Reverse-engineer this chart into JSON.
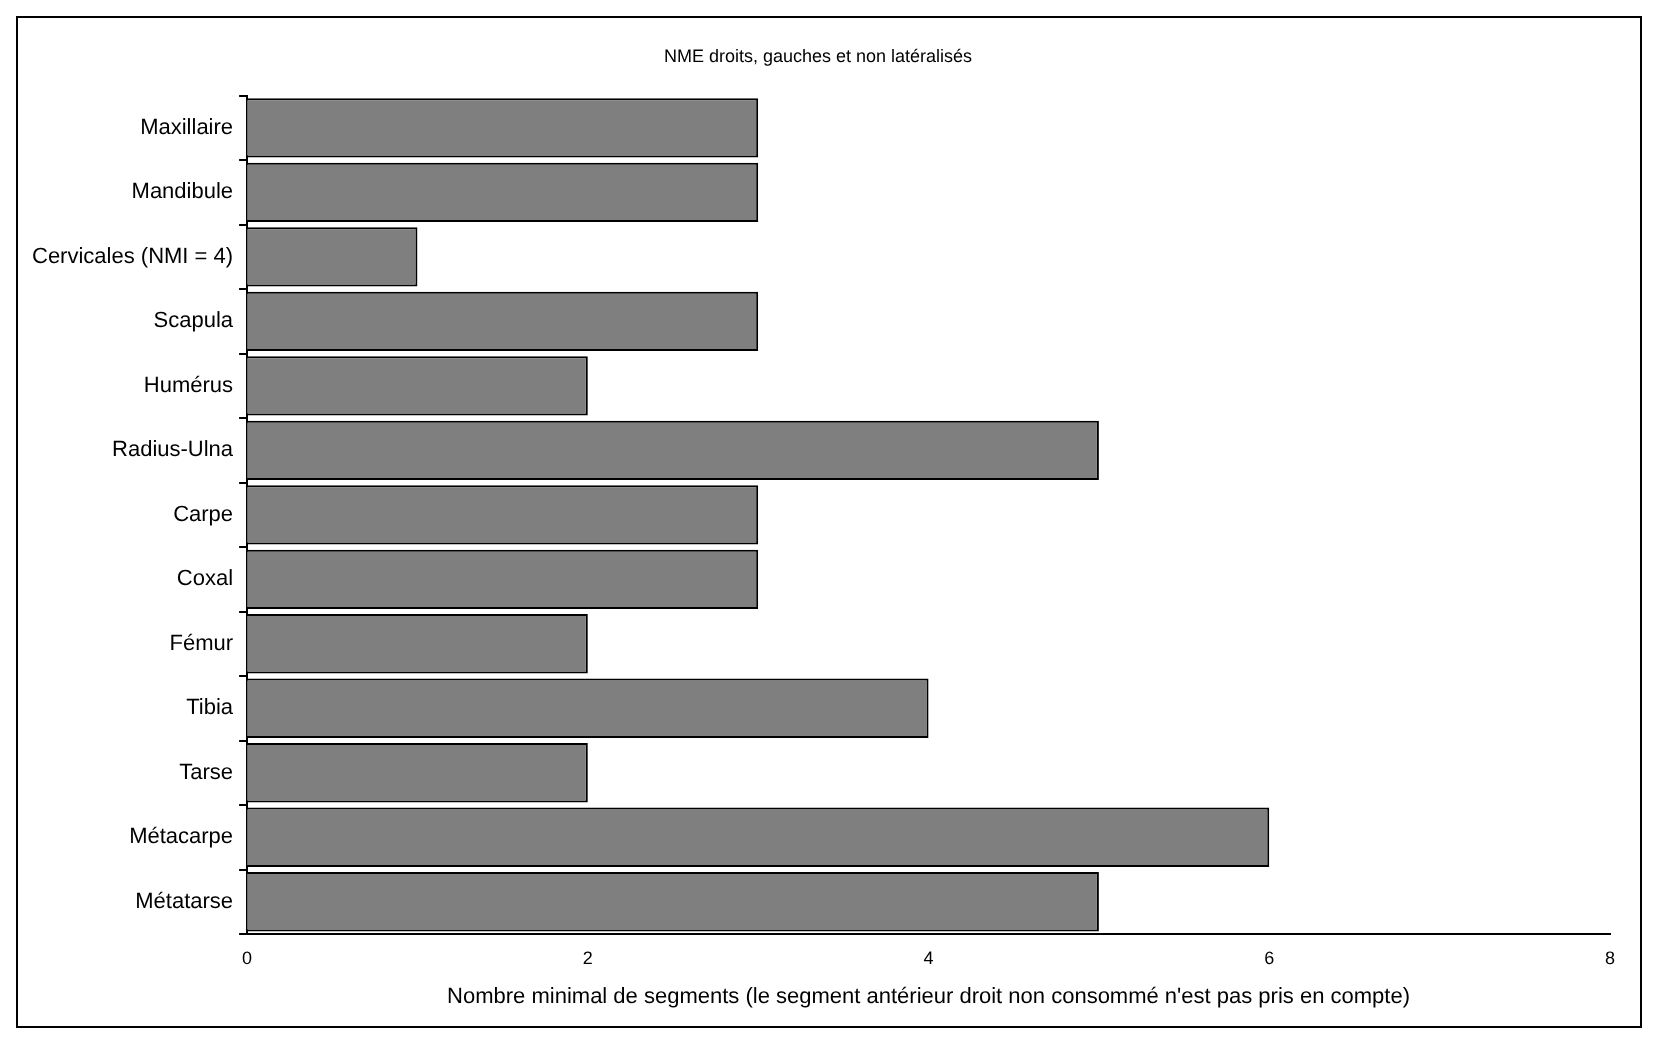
{
  "chart_data": {
    "type": "bar",
    "orientation": "horizontal",
    "title": "NME droits, gauches et non latéralisés",
    "xlabel": "Nombre minimal de segments (le segment antérieur droit non consommé n'est pas pris en compte)",
    "categories": [
      "Maxillaire",
      "Mandibule",
      "Cervicales (NMI = 4)",
      "Scapula",
      "Humérus",
      "Radius-Ulna",
      "Carpe",
      "Coxal",
      "Fémur",
      "Tibia",
      "Tarse",
      "Métacarpe",
      "Métatarse"
    ],
    "values": [
      3,
      3,
      1,
      3,
      2,
      5,
      3,
      3,
      2,
      4,
      2,
      6,
      5
    ],
    "color": "#7f7f7f",
    "xlim": [
      0,
      8
    ],
    "xticks": [
      0,
      2,
      4,
      6,
      8
    ],
    "grid": false,
    "legend": false
  }
}
